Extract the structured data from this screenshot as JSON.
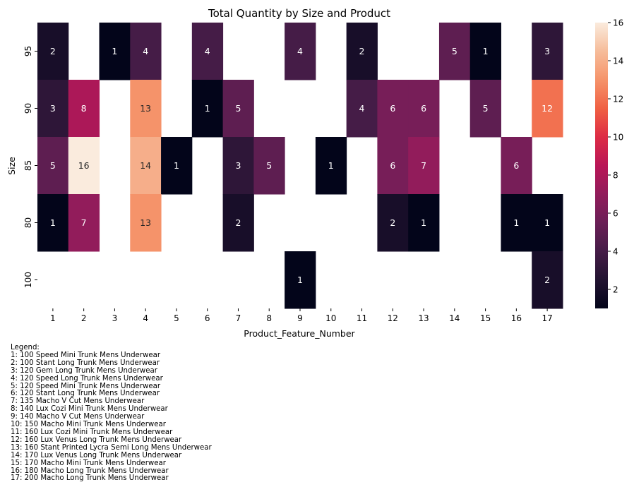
{
  "chart_data": {
    "type": "heatmap",
    "title": "Total Quantity by Size and Product",
    "xlabel": "Product_Feature_Number",
    "ylabel": "Size",
    "x_categories": [
      "1",
      "2",
      "3",
      "4",
      "5",
      "6",
      "7",
      "8",
      "9",
      "10",
      "11",
      "12",
      "13",
      "14",
      "15",
      "16",
      "17"
    ],
    "y_categories": [
      "95",
      "90",
      "85",
      "80",
      "100"
    ],
    "values": [
      [
        2,
        null,
        1,
        4,
        null,
        4,
        null,
        null,
        4,
        null,
        2,
        null,
        null,
        5,
        1,
        null,
        3
      ],
      [
        3,
        8,
        null,
        13,
        null,
        1,
        5,
        null,
        null,
        null,
        4,
        6,
        6,
        null,
        5,
        null,
        12
      ],
      [
        5,
        16,
        null,
        14,
        1,
        null,
        3,
        5,
        null,
        1,
        null,
        6,
        7,
        null,
        null,
        6,
        null
      ],
      [
        1,
        7,
        null,
        13,
        null,
        null,
        2,
        null,
        null,
        null,
        null,
        2,
        1,
        null,
        null,
        1,
        1
      ],
      [
        null,
        null,
        null,
        null,
        null,
        null,
        null,
        null,
        1,
        null,
        null,
        null,
        null,
        null,
        null,
        null,
        2
      ]
    ],
    "colorbar": {
      "range": [
        1,
        16
      ],
      "ticks": [
        2,
        4,
        6,
        8,
        10,
        12,
        14,
        16
      ],
      "colormap": "rocket"
    },
    "annotations": true
  },
  "legend": {
    "title": "Legend:",
    "items": [
      "1: 100 Speed Mini Trunk Mens Underwear",
      "2: 100 Stant Long Trunk Mens Underwear",
      "3: 120 Gem Long Trunk Mens Underwear",
      "4: 120 Speed Long Trunk Mens Underwear",
      "5: 120 Speed Mini Trunk Mens Underwear",
      "6: 120 Stant Long Trunk Mens Underwear",
      "7: 135 Macho V Cut Mens Underwear",
      "8: 140 Lux Cozi Mini Trunk Mens Underwear",
      "9: 140 Macho V Cut Mens Underwear",
      "10: 150 Macho Mini Trunk Mens Underwear",
      "11: 160 Lux Cozi Mini Trunk Mens Underwear",
      "12: 160 Lux Venus Long Trunk Mens Underwear",
      "13: 160 Stant Printed Lycra Semi Long Mens Underwear",
      "14: 170 Lux Venus Long Trunk Mens Underwear",
      "15: 170 Macho Mini Trunk Mens Underwear",
      "16: 180 Macho Long Trunk Mens Underwear",
      "17: 200 Macho Long Trunk Mens Underwear"
    ]
  }
}
